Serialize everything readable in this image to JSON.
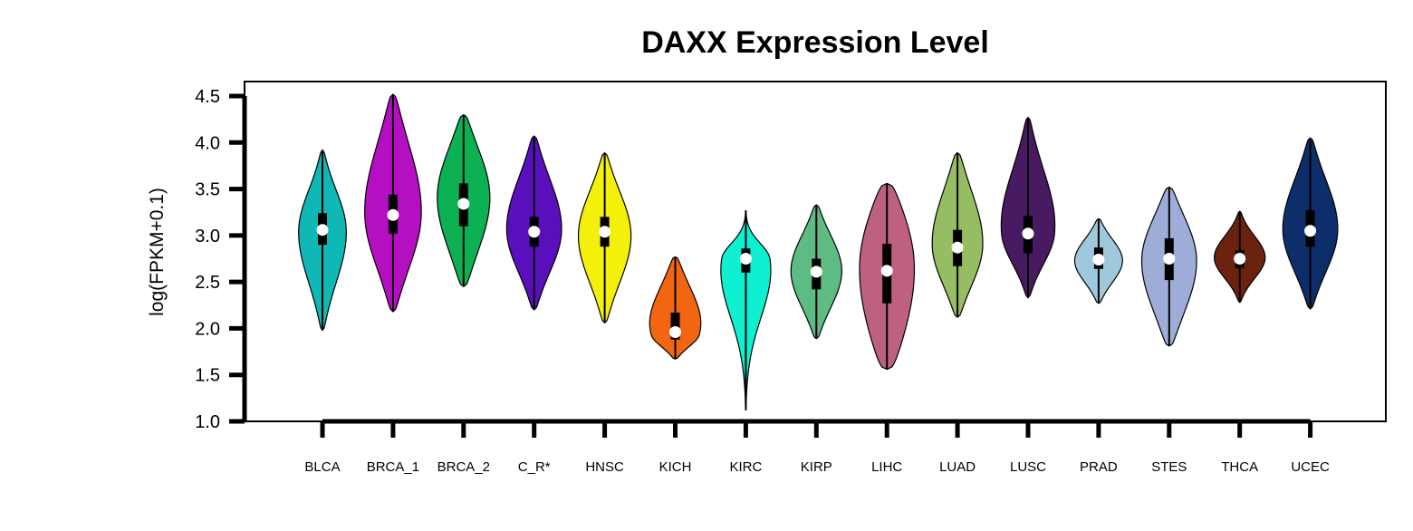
{
  "chart_data": {
    "type": "violin",
    "title": "DAXX Expression Level",
    "xlabel": "",
    "ylabel": "log(FPKM+0.1)",
    "ylim": [
      1.0,
      4.5
    ],
    "yticks": [
      "1.0",
      "1.5",
      "2.0",
      "2.5",
      "3.0",
      "3.5",
      "4.0",
      "4.5"
    ],
    "grid": false,
    "legend": "none",
    "categories": [
      "BLCA",
      "BRCA_1",
      "BRCA_2",
      "C_R*",
      "HNSC",
      "KICH",
      "KIRC",
      "KIRP",
      "LIHC",
      "LUAD",
      "LUSC",
      "PRAD",
      "STES",
      "THCA",
      "UCEC"
    ],
    "groups": [
      {
        "label": "BLCA",
        "color": "#0fb8b5",
        "min": 1.98,
        "max": 3.92,
        "q1": 2.9,
        "median": 3.06,
        "q3": 3.24,
        "mode": 3.06,
        "width": 0.8,
        "bulge": 1.8
      },
      {
        "label": "BRCA_1",
        "color": "#b40fc0",
        "min": 2.18,
        "max": 4.52,
        "q1": 3.02,
        "median": 3.22,
        "q3": 3.44,
        "mode": 3.22,
        "width": 0.95,
        "bulge": 1.6
      },
      {
        "label": "BRCA_2",
        "color": "#0db052",
        "min": 2.45,
        "max": 4.3,
        "q1": 3.1,
        "median": 3.34,
        "q3": 3.56,
        "mode": 3.42,
        "width": 0.88,
        "bulge": 1.5
      },
      {
        "label": "C_R*",
        "color": "#5a0fbc",
        "min": 2.2,
        "max": 4.07,
        "q1": 2.88,
        "median": 3.04,
        "q3": 3.2,
        "mode": 3.05,
        "width": 0.92,
        "bulge": 1.7
      },
      {
        "label": "HNSC",
        "color": "#f5f00a",
        "min": 2.06,
        "max": 3.89,
        "q1": 2.88,
        "median": 3.04,
        "q3": 3.2,
        "mode": 3.0,
        "width": 0.88,
        "bulge": 1.7
      },
      {
        "label": "KICH",
        "color": "#f26511",
        "min": 1.67,
        "max": 2.77,
        "q1": 1.88,
        "median": 1.96,
        "q3": 2.17,
        "mode": 1.93,
        "width": 0.92,
        "bulge": 1.7
      },
      {
        "label": "KIRC",
        "color": "#0ff0d0",
        "min": 1.12,
        "max": 3.27,
        "q1": 2.6,
        "median": 2.75,
        "q3": 2.86,
        "mode": 2.75,
        "width": 0.92,
        "bulge": 2.8
      },
      {
        "label": "KIRP",
        "color": "#5fbb84",
        "min": 1.89,
        "max": 3.33,
        "q1": 2.42,
        "median": 2.61,
        "q3": 2.75,
        "mode": 2.62,
        "width": 0.85,
        "bulge": 1.7
      },
      {
        "label": "LIHC",
        "color": "#bd617e",
        "min": 1.56,
        "max": 3.56,
        "q1": 2.27,
        "median": 2.62,
        "q3": 2.91,
        "mode": 2.7,
        "width": 0.92,
        "bulge": 1.1
      },
      {
        "label": "LUAD",
        "color": "#97bd62",
        "min": 2.12,
        "max": 3.89,
        "q1": 2.67,
        "median": 2.87,
        "q3": 3.06,
        "mode": 2.88,
        "width": 0.85,
        "bulge": 1.6
      },
      {
        "label": "LUSC",
        "color": "#471a62",
        "min": 2.33,
        "max": 4.27,
        "q1": 2.81,
        "median": 3.02,
        "q3": 3.21,
        "mode": 3.02,
        "width": 0.92,
        "bulge": 1.8
      },
      {
        "label": "PRAD",
        "color": "#a0c8dc",
        "min": 2.27,
        "max": 3.18,
        "q1": 2.64,
        "median": 2.74,
        "q3": 2.87,
        "mode": 2.73,
        "width": 0.8,
        "bulge": 1.8
      },
      {
        "label": "STES",
        "color": "#9dadd8",
        "min": 1.81,
        "max": 3.52,
        "q1": 2.52,
        "median": 2.75,
        "q3": 2.97,
        "mode": 2.75,
        "width": 0.92,
        "bulge": 1.5
      },
      {
        "label": "THCA",
        "color": "#6b2310",
        "min": 2.28,
        "max": 3.26,
        "q1": 2.65,
        "median": 2.75,
        "q3": 2.84,
        "mode": 2.76,
        "width": 0.85,
        "bulge": 2.0
      },
      {
        "label": "UCEC",
        "color": "#0d2e6a",
        "min": 2.21,
        "max": 4.05,
        "q1": 2.88,
        "median": 3.05,
        "q3": 3.27,
        "mode": 3.05,
        "width": 0.92,
        "bulge": 1.7
      }
    ]
  }
}
